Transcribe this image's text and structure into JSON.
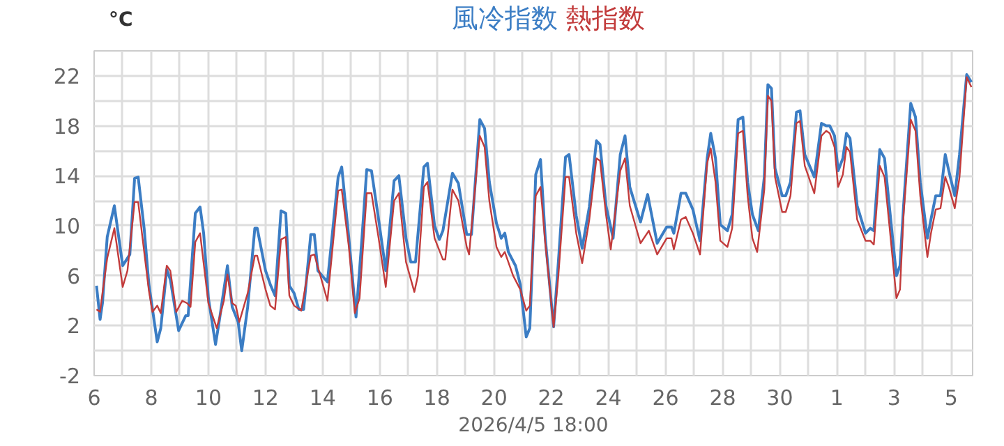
{
  "chart_data": {
    "type": "line",
    "ylabel": "°C",
    "xlabel": "2026/4/5 18:00",
    "grid": true,
    "marker": "none",
    "line_style": "solid",
    "xlim": [
      "2026-03-06",
      "2026-04-05T18:00"
    ],
    "xticks": [
      {
        "value": "2026-03-06",
        "label": "6"
      },
      {
        "value": "2026-03-07",
        "label": null
      },
      {
        "value": "2026-03-08",
        "label": "8"
      },
      {
        "value": "2026-03-09",
        "label": null
      },
      {
        "value": "2026-03-10",
        "label": "10"
      },
      {
        "value": "2026-03-11",
        "label": null
      },
      {
        "value": "2026-03-12",
        "label": "12"
      },
      {
        "value": "2026-03-13",
        "label": null
      },
      {
        "value": "2026-03-14",
        "label": "14"
      },
      {
        "value": "2026-03-15",
        "label": null
      },
      {
        "value": "2026-03-16",
        "label": "16"
      },
      {
        "value": "2026-03-17",
        "label": null
      },
      {
        "value": "2026-03-18",
        "label": "18"
      },
      {
        "value": "2026-03-19",
        "label": null
      },
      {
        "value": "2026-03-20",
        "label": "20"
      },
      {
        "value": "2026-03-21",
        "label": null
      },
      {
        "value": "2026-03-22",
        "label": "22"
      },
      {
        "value": "2026-03-23",
        "label": null
      },
      {
        "value": "2026-03-24",
        "label": "24"
      },
      {
        "value": "2026-03-25",
        "label": null
      },
      {
        "value": "2026-03-26",
        "label": "26"
      },
      {
        "value": "2026-03-27",
        "label": null
      },
      {
        "value": "2026-03-28",
        "label": "28"
      },
      {
        "value": "2026-03-29",
        "label": null
      },
      {
        "value": "2026-03-30",
        "label": "30"
      },
      {
        "value": "2026-03-31",
        "label": null
      },
      {
        "value": "2026-04-01",
        "label": "1"
      },
      {
        "value": "2026-04-02",
        "label": null
      },
      {
        "value": "2026-04-03",
        "label": "3"
      },
      {
        "value": "2026-04-04",
        "label": null
      },
      {
        "value": "2026-04-05",
        "label": "5"
      }
    ],
    "ylim": [
      -2,
      24
    ],
    "yticks": [
      -2,
      {
        "value": 0,
        "label": null
      },
      2,
      {
        "value": 4,
        "label": null
      },
      6,
      {
        "value": 8,
        "label": null
      },
      10,
      {
        "value": 12,
        "label": null
      },
      14,
      {
        "value": 16,
        "label": null
      },
      18,
      {
        "value": 20,
        "label": null
      },
      22,
      {
        "value": 24,
        "label": null
      }
    ],
    "series": [
      {
        "name": "風冷指数",
        "color": "#3b7dc4",
        "x": [
          "2026-03-06T02:00",
          "2026-03-06T05:00",
          "2026-03-06T07:00",
          "2026-03-06T11:00",
          "2026-03-06T17:00",
          "2026-03-07T00:00",
          "2026-03-07T06:00",
          "2026-03-07T10:00",
          "2026-03-07T13:00",
          "2026-03-07T18:00",
          "2026-03-07T22:00",
          "2026-03-08T05:00",
          "2026-03-08T08:00",
          "2026-03-08T13:00",
          "2026-03-08T16:00",
          "2026-03-08T23:00",
          "2026-03-09T05:00",
          "2026-03-09T07:00",
          "2026-03-09T13:00",
          "2026-03-09T17:00",
          "2026-03-09T20:00",
          "2026-03-10T00:00",
          "2026-03-10T06:00",
          "2026-03-10T09:00",
          "2026-03-10T16:00",
          "2026-03-10T20:00",
          "2026-03-11T01:00",
          "2026-03-11T04:00",
          "2026-03-11T09:00",
          "2026-03-11T15:00",
          "2026-03-11T17:00",
          "2026-03-12T00:00",
          "2026-03-12T04:00",
          "2026-03-12T08:00",
          "2026-03-12T13:00",
          "2026-03-12T17:00",
          "2026-03-12T20:00",
          "2026-03-13T00:00",
          "2026-03-13T04:00",
          "2026-03-13T08:00",
          "2026-03-13T14:00",
          "2026-03-13T17:00",
          "2026-03-13T20:00",
          "2026-03-14T04:00",
          "2026-03-14T13:00",
          "2026-03-14T16:00",
          "2026-03-14T22:00",
          "2026-03-15T04:00",
          "2026-03-15T09:00",
          "2026-03-15T13:00",
          "2026-03-15T17:00",
          "2026-03-15T23:00",
          "2026-03-16T05:00",
          "2026-03-16T12:00",
          "2026-03-16T16:00",
          "2026-03-16T22:00",
          "2026-03-17T02:00",
          "2026-03-17T06:00",
          "2026-03-17T13:00",
          "2026-03-17T16:00",
          "2026-03-17T22:00",
          "2026-03-18T02:00",
          "2026-03-18T05:00",
          "2026-03-18T13:00",
          "2026-03-18T18:00",
          "2026-03-19T01:00",
          "2026-03-19T05:00",
          "2026-03-19T12:00",
          "2026-03-19T16:00",
          "2026-03-19T20:00",
          "2026-03-20T02:00",
          "2026-03-20T06:00",
          "2026-03-20T09:00",
          "2026-03-20T12:00",
          "2026-03-20T18:00",
          "2026-03-20T22:00",
          "2026-03-21T03:00",
          "2026-03-21T06:00",
          "2026-03-21T11:00",
          "2026-03-21T15:00",
          "2026-03-21T19:00",
          "2026-03-22T02:00",
          "2026-03-22T06:00",
          "2026-03-22T12:00",
          "2026-03-22T15:00",
          "2026-03-22T21:00",
          "2026-03-23T02:00",
          "2026-03-23T08:00",
          "2026-03-23T14:00",
          "2026-03-23T17:00",
          "2026-03-23T22:00",
          "2026-03-24T04:00",
          "2026-03-24T10:00",
          "2026-03-24T14:00",
          "2026-03-24T18:00",
          "2026-03-25T03:00",
          "2026-03-25T09:00",
          "2026-03-25T17:00",
          "2026-03-26T01:00",
          "2026-03-26T05:00",
          "2026-03-26T07:00",
          "2026-03-26T13:00",
          "2026-03-26T17:00",
          "2026-03-26T23:00",
          "2026-03-27T05:00",
          "2026-03-27T11:00",
          "2026-03-27T14:00",
          "2026-03-27T18:00",
          "2026-03-27T22:00",
          "2026-03-28T04:00",
          "2026-03-28T08:00",
          "2026-03-28T13:00",
          "2026-03-28T17:00",
          "2026-03-28T21:00",
          "2026-03-29T01:00",
          "2026-03-29T06:00",
          "2026-03-29T11:00",
          "2026-03-29T14:00",
          "2026-03-29T17:00",
          "2026-03-29T20:00",
          "2026-03-30T02:00",
          "2026-03-30T05:00",
          "2026-03-30T09:00",
          "2026-03-30T14:00",
          "2026-03-30T17:00",
          "2026-03-30T21:00",
          "2026-03-31T05:00",
          "2026-03-31T11:00",
          "2026-03-31T15:00",
          "2026-03-31T18:00",
          "2026-03-31T22:00",
          "2026-04-01T01:00",
          "2026-04-01T05:00",
          "2026-04-01T08:00",
          "2026-04-01T11:00",
          "2026-04-01T17:00",
          "2026-04-02T00:00",
          "2026-04-02T04:00",
          "2026-04-02T07:00",
          "2026-04-02T12:00",
          "2026-04-02T16:00",
          "2026-04-02T20:00",
          "2026-04-03T02:00",
          "2026-04-03T05:00",
          "2026-04-03T08:00",
          "2026-04-03T14:00",
          "2026-04-03T18:00",
          "2026-04-03T22:00",
          "2026-04-04T04:00",
          "2026-04-04T07:00",
          "2026-04-04T11:00",
          "2026-04-04T15:00",
          "2026-04-04T19:00",
          "2026-04-04T22:00",
          "2026-04-05T03:00",
          "2026-04-05T07:00",
          "2026-04-05T13:00",
          "2026-04-05T17:00"
        ],
        "values": [
          5.2,
          2.5,
          3.8,
          9.1,
          11.6,
          6.8,
          7.7,
          13.8,
          13.9,
          9.8,
          5.3,
          0.7,
          1.8,
          6.5,
          5.7,
          1.6,
          2.8,
          2.8,
          11.0,
          11.5,
          9.4,
          4.2,
          0.5,
          2.3,
          6.8,
          3.5,
          2.3,
          0.0,
          3.5,
          9.8,
          9.8,
          6.4,
          5.3,
          4.4,
          11.2,
          11.0,
          5.2,
          4.6,
          3.3,
          3.3,
          9.3,
          9.3,
          6.4,
          5.5,
          13.9,
          14.7,
          9.0,
          2.7,
          9.0,
          14.5,
          14.4,
          10.5,
          6.4,
          13.6,
          14.0,
          9.0,
          7.1,
          7.1,
          14.7,
          15.0,
          10.0,
          8.9,
          9.6,
          14.2,
          13.4,
          9.3,
          9.3,
          18.5,
          17.8,
          13.5,
          10.2,
          9.0,
          9.4,
          7.9,
          6.8,
          5.3,
          1.1,
          1.8,
          14.1,
          15.3,
          9.0,
          1.9,
          7.1,
          15.5,
          15.7,
          10.8,
          8.2,
          11.5,
          16.8,
          16.5,
          11.6,
          9.0,
          15.7,
          17.2,
          13.1,
          10.3,
          12.5,
          8.6,
          9.9,
          9.9,
          9.4,
          12.6,
          12.6,
          11.3,
          8.8,
          15.4,
          17.4,
          15.4,
          10.1,
          9.6,
          10.9,
          18.5,
          18.7,
          13.5,
          10.9,
          9.6,
          13.9,
          21.3,
          21.0,
          14.6,
          12.4,
          12.4,
          13.5,
          19.1,
          19.2,
          15.7,
          13.9,
          18.2,
          18.0,
          18.0,
          17.2,
          14.4,
          15.4,
          17.4,
          17.0,
          11.6,
          9.4,
          9.8,
          9.6,
          16.1,
          15.4,
          11.6,
          6.0,
          6.8,
          11.6,
          19.8,
          18.7,
          13.5,
          9.0,
          10.5,
          12.4,
          12.4,
          15.7,
          14.4,
          12.4,
          15.7,
          22.1,
          21.5
        ]
      },
      {
        "name": "熱指数",
        "color": "#c23b3b",
        "x": [
          "2026-03-06T02:00",
          "2026-03-06T05:00",
          "2026-03-06T07:00",
          "2026-03-06T11:00",
          "2026-03-06T17:00",
          "2026-03-07T00:00",
          "2026-03-07T04:00",
          "2026-03-07T10:00",
          "2026-03-07T13:00",
          "2026-03-07T22:00",
          "2026-03-08T01:00",
          "2026-03-08T05:00",
          "2026-03-08T08:00",
          "2026-03-08T13:00",
          "2026-03-08T16:00",
          "2026-03-08T21:00",
          "2026-03-09T02:00",
          "2026-03-09T06:00",
          "2026-03-09T09:00",
          "2026-03-09T13:00",
          "2026-03-09T17:00",
          "2026-03-10T00:00",
          "2026-03-10T07:00",
          "2026-03-10T13:00",
          "2026-03-10T16:00",
          "2026-03-10T20:00",
          "2026-03-10T23:00",
          "2026-03-11T02:00",
          "2026-03-11T09:00",
          "2026-03-11T15:00",
          "2026-03-11T17:00",
          "2026-03-12T00:00",
          "2026-03-12T04:00",
          "2026-03-12T08:00",
          "2026-03-12T13:00",
          "2026-03-12T17:00",
          "2026-03-12T20:00",
          "2026-03-13T00:00",
          "2026-03-13T06:00",
          "2026-03-13T14:00",
          "2026-03-13T17:00",
          "2026-03-14T04:00",
          "2026-03-14T13:00",
          "2026-03-14T16:00",
          "2026-03-14T22:00",
          "2026-03-15T03:00",
          "2026-03-15T07:00",
          "2026-03-15T13:00",
          "2026-03-15T17:00",
          "2026-03-15T23:00",
          "2026-03-16T05:00",
          "2026-03-16T12:00",
          "2026-03-16T16:00",
          "2026-03-16T22:00",
          "2026-03-17T05:00",
          "2026-03-17T08:00",
          "2026-03-17T13:00",
          "2026-03-17T16:00",
          "2026-03-17T22:00",
          "2026-03-18T05:00",
          "2026-03-18T07:00",
          "2026-03-18T13:00",
          "2026-03-18T18:00",
          "2026-03-19T01:00",
          "2026-03-19T03:00",
          "2026-03-19T12:00",
          "2026-03-19T16:00",
          "2026-03-19T20:00",
          "2026-03-20T02:00",
          "2026-03-20T06:00",
          "2026-03-20T09:00",
          "2026-03-20T16:00",
          "2026-03-20T22:00",
          "2026-03-21T03:00",
          "2026-03-21T06:00",
          "2026-03-21T11:00",
          "2026-03-21T15:00",
          "2026-03-21T19:00",
          "2026-03-22T02:00",
          "2026-03-22T06:00",
          "2026-03-22T12:00",
          "2026-03-22T15:00",
          "2026-03-22T21:00",
          "2026-03-23T02:00",
          "2026-03-23T08:00",
          "2026-03-23T14:00",
          "2026-03-23T17:00",
          "2026-03-23T22:00",
          "2026-03-24T02:00",
          "2026-03-24T10:00",
          "2026-03-24T14:00",
          "2026-03-24T18:00",
          "2026-03-25T03:00",
          "2026-03-25T10:00",
          "2026-03-25T17:00",
          "2026-03-26T01:00",
          "2026-03-26T05:00",
          "2026-03-26T07:00",
          "2026-03-26T13:00",
          "2026-03-26T17:00",
          "2026-03-26T23:00",
          "2026-03-27T05:00",
          "2026-03-27T11:00",
          "2026-03-27T14:00",
          "2026-03-27T18:00",
          "2026-03-27T22:00",
          "2026-03-28T04:00",
          "2026-03-28T08:00",
          "2026-03-28T13:00",
          "2026-03-28T17:00",
          "2026-03-28T21:00",
          "2026-03-29T01:00",
          "2026-03-29T05:00",
          "2026-03-29T11:00",
          "2026-03-29T14:00",
          "2026-03-29T17:00",
          "2026-03-29T20:00",
          "2026-03-30T02:00",
          "2026-03-30T05:00",
          "2026-03-30T09:00",
          "2026-03-30T14:00",
          "2026-03-30T17:00",
          "2026-03-30T21:00",
          "2026-03-31T05:00",
          "2026-03-31T11:00",
          "2026-03-31T15:00",
          "2026-03-31T18:00",
          "2026-03-31T22:00",
          "2026-04-01T01:00",
          "2026-04-01T05:00",
          "2026-04-01T08:00",
          "2026-04-01T11:00",
          "2026-04-01T17:00",
          "2026-04-02T00:00",
          "2026-04-02T04:00",
          "2026-04-02T07:00",
          "2026-04-02T12:00",
          "2026-04-02T16:00",
          "2026-04-02T20:00",
          "2026-04-03T02:00",
          "2026-04-03T05:00",
          "2026-04-03T08:00",
          "2026-04-03T14:00",
          "2026-04-03T18:00",
          "2026-04-03T22:00",
          "2026-04-04T04:00",
          "2026-04-04T07:00",
          "2026-04-04T11:00",
          "2026-04-04T15:00",
          "2026-04-04T19:00",
          "2026-04-04T22:00",
          "2026-04-05T03:00",
          "2026-04-05T07:00",
          "2026-04-05T13:00",
          "2026-04-05T17:00"
        ],
        "values": [
          3.3,
          3.1,
          4.6,
          7.4,
          9.8,
          5.1,
          6.4,
          11.9,
          11.9,
          4.8,
          3.1,
          3.6,
          3.0,
          6.8,
          6.4,
          3.1,
          4.0,
          3.8,
          3.5,
          8.7,
          9.4,
          3.8,
          1.8,
          4.0,
          6.1,
          3.8,
          3.6,
          2.3,
          4.6,
          7.6,
          7.6,
          4.9,
          3.6,
          3.3,
          8.9,
          9.1,
          4.4,
          3.6,
          3.2,
          7.6,
          7.7,
          4.0,
          12.8,
          12.9,
          8.3,
          3.0,
          4.2,
          12.6,
          12.6,
          9.0,
          5.1,
          12.0,
          12.6,
          7.1,
          4.7,
          6.0,
          13.1,
          13.5,
          9.0,
          7.3,
          7.3,
          12.9,
          12.0,
          8.3,
          7.7,
          17.2,
          16.3,
          12.0,
          8.3,
          7.5,
          7.9,
          6.0,
          4.9,
          3.2,
          3.6,
          12.4,
          13.1,
          8.6,
          1.9,
          6.0,
          13.9,
          13.9,
          9.4,
          7.0,
          10.5,
          15.4,
          15.2,
          10.9,
          8.1,
          14.4,
          15.4,
          11.6,
          8.6,
          9.6,
          7.7,
          9.0,
          9.0,
          8.1,
          10.5,
          10.7,
          9.4,
          7.7,
          15.0,
          16.2,
          13.5,
          8.8,
          8.3,
          9.8,
          17.4,
          17.6,
          12.4,
          9.0,
          7.9,
          12.9,
          20.4,
          20.0,
          13.9,
          11.1,
          11.1,
          12.4,
          18.2,
          18.4,
          14.8,
          12.6,
          17.2,
          17.6,
          17.4,
          16.3,
          13.1,
          14.1,
          16.3,
          15.9,
          10.5,
          8.8,
          8.8,
          8.5,
          14.8,
          13.9,
          10.1,
          4.2,
          4.9,
          10.9,
          18.5,
          17.6,
          12.4,
          7.5,
          9.4,
          11.3,
          11.4,
          13.9,
          13.1,
          11.4,
          13.9,
          21.9,
          21.1
        ]
      }
    ]
  }
}
